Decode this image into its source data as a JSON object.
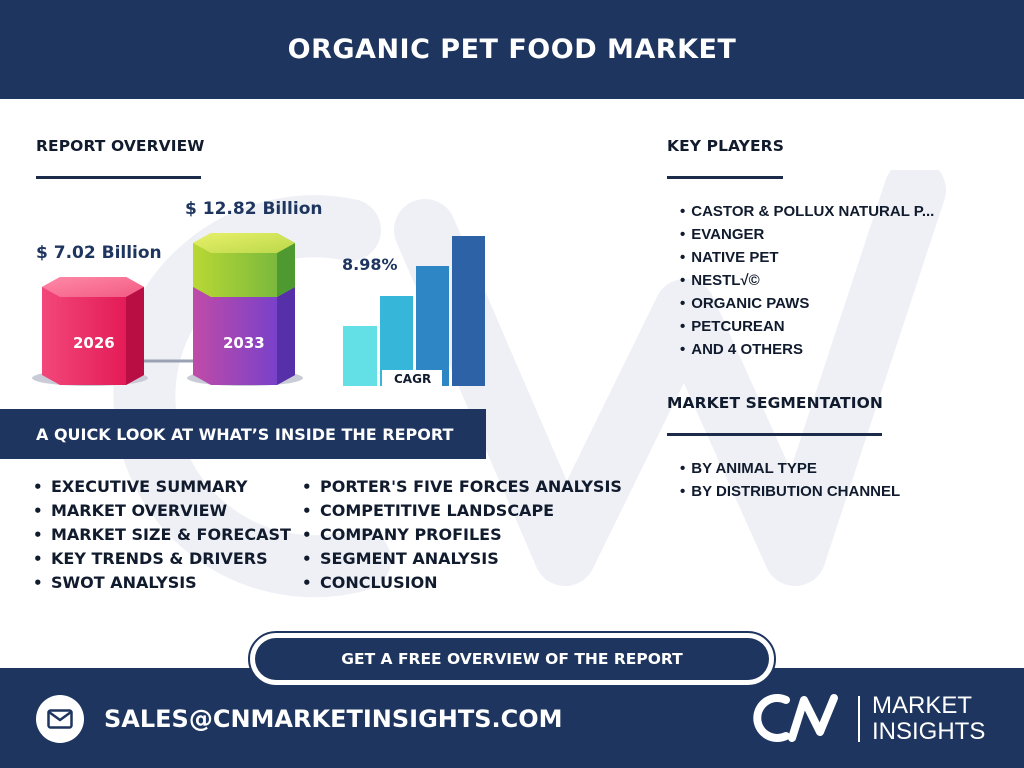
{
  "header": {
    "title": "ORGANIC PET FOOD MARKET"
  },
  "report_overview": {
    "title": "REPORT OVERVIEW",
    "value_2026": "$ 7.02 Billion",
    "value_2033": "$ 12.82 Billion",
    "year_2026": "2026",
    "year_2033": "2033",
    "cagr_value": "8.98%",
    "cagr_label": "CAGR"
  },
  "key_players": {
    "title": "KEY PLAYERS",
    "items": [
      "CASTOR & POLLUX NATURAL P...",
      "EVANGER",
      "NATIVE PET",
      "NESTL√©",
      "ORGANIC PAWS",
      "PETCUREAN",
      "AND 4 OTHERS"
    ]
  },
  "market_segmentation": {
    "title": "MARKET SEGMENTATION",
    "items": [
      "BY ANIMAL TYPE",
      "BY DISTRIBUTION CHANNEL"
    ]
  },
  "quick_look": {
    "title": "A QUICK LOOK AT WHAT’S INSIDE THE REPORT",
    "left": [
      "EXECUTIVE SUMMARY",
      "MARKET OVERVIEW",
      "MARKET SIZE & FORECAST",
      "KEY TRENDS & DRIVERS",
      "SWOT ANALYSIS"
    ],
    "right": [
      "PORTER'S FIVE FORCES ANALYSIS",
      "COMPETITIVE LANDSCAPE",
      "COMPANY PROFILES",
      "SEGMENT ANALYSIS",
      "CONCLUSION"
    ]
  },
  "cta": {
    "label": "GET A FREE OVERVIEW OF THE REPORT"
  },
  "footer": {
    "email": "SALES@CNMARKETINSIGHTS.COM",
    "logo_line1": "MARKET",
    "logo_line2": "INSIGHTS"
  },
  "colors": {
    "navy": "#1e355f",
    "accent_pink": "#e8195a",
    "accent_purple": "#7a3fc8",
    "accent_green": "#8cc63f",
    "bar_blue": "#2f6db0"
  },
  "icons": {
    "mail": "mail-icon",
    "logo": "cn-logo-icon"
  }
}
